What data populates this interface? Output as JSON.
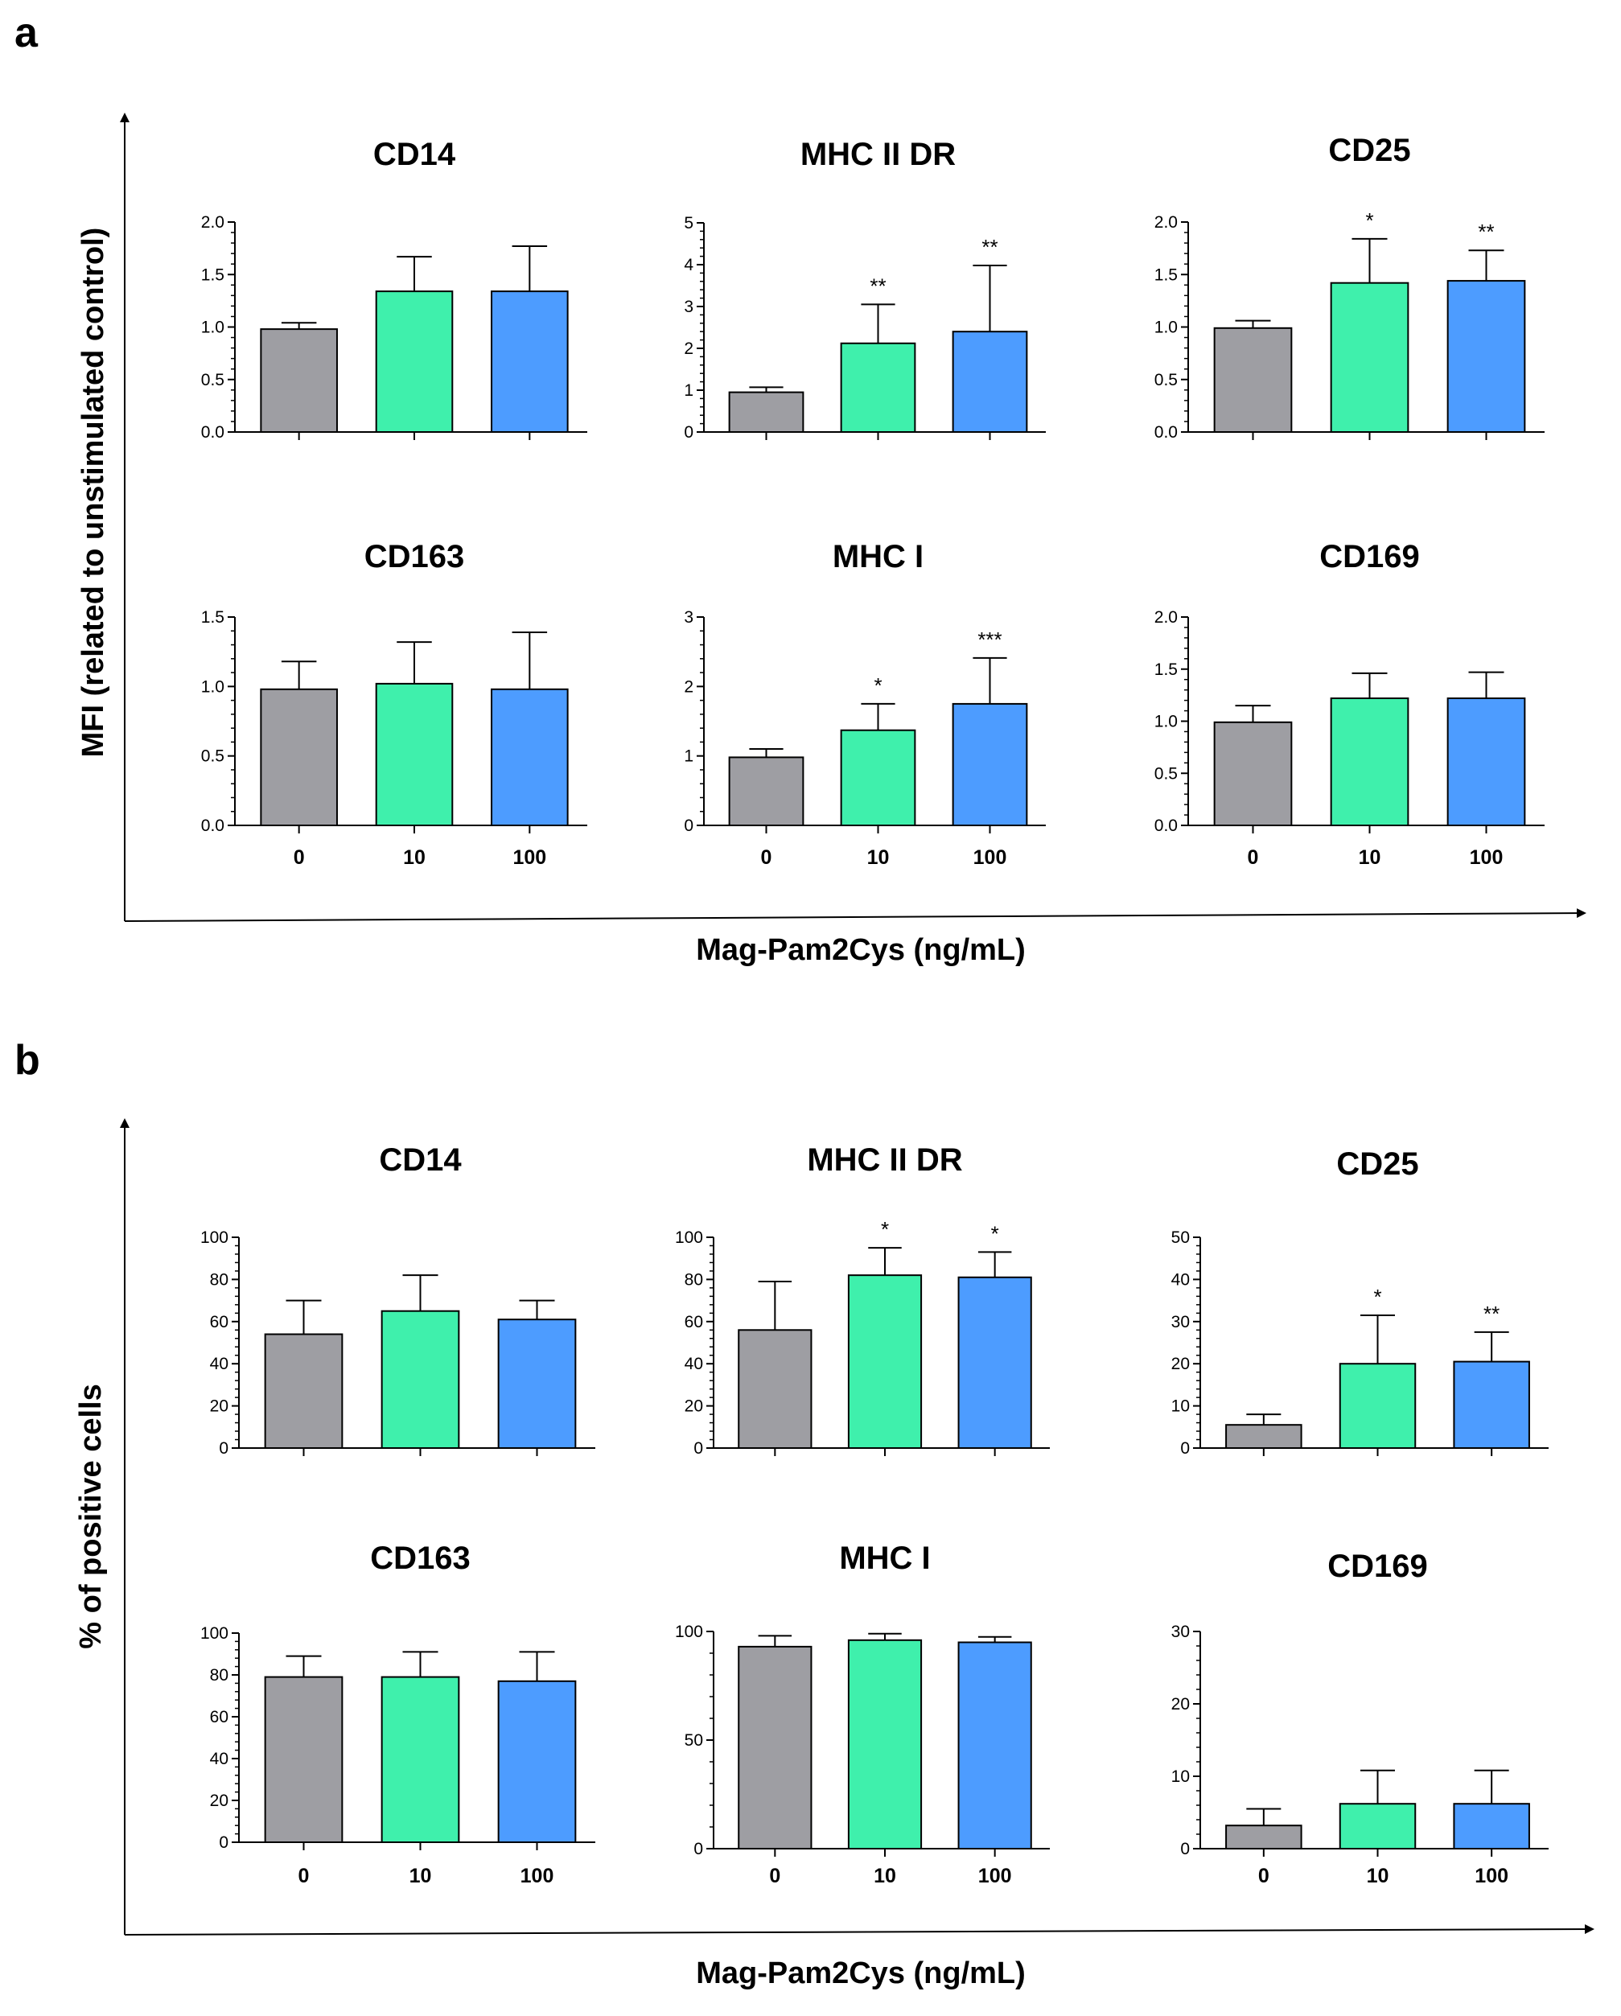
{
  "figure": {
    "panel_a_letter": "a",
    "panel_b_letter": "b",
    "panel_a_ylabel": "MFI (related to unstimulated control)",
    "panel_b_ylabel": "% of positive cells",
    "xlabel": "Mag-Pam2Cys (ng/mL)"
  },
  "colors": {
    "0": "#9e9ea3",
    "10": "#3ff0ac",
    "100": "#4d9cff",
    "axis": "#000000"
  },
  "chart_data": [
    {
      "panel": "a",
      "type": "bar",
      "title": "CD14",
      "categories": [
        "0",
        "10",
        "100"
      ],
      "values": [
        0.98,
        1.34,
        1.34
      ],
      "errors": [
        0.06,
        0.33,
        0.43
      ],
      "significance": [
        "",
        "",
        ""
      ],
      "ylim": [
        0,
        2.0
      ],
      "yticks": [
        "0.0",
        "0.5",
        "1.0",
        "1.5",
        "2.0"
      ],
      "show_categories": false
    },
    {
      "panel": "a",
      "type": "bar",
      "title": "MHC II DR",
      "categories": [
        "0",
        "10",
        "100"
      ],
      "values": [
        0.95,
        2.12,
        2.4
      ],
      "errors": [
        0.12,
        0.93,
        1.58
      ],
      "significance": [
        "",
        "**",
        "**"
      ],
      "ylim": [
        0,
        5
      ],
      "yticks": [
        "0",
        "1",
        "2",
        "3",
        "4",
        "5"
      ],
      "show_categories": false
    },
    {
      "panel": "a",
      "type": "bar",
      "title": "CD25",
      "categories": [
        "0",
        "10",
        "100"
      ],
      "values": [
        0.99,
        1.42,
        1.44
      ],
      "errors": [
        0.07,
        0.42,
        0.29
      ],
      "significance": [
        "",
        "*",
        "**"
      ],
      "ylim": [
        0,
        2.0
      ],
      "yticks": [
        "0.0",
        "0.5",
        "1.0",
        "1.5",
        "2.0"
      ],
      "show_categories": false
    },
    {
      "panel": "a",
      "type": "bar",
      "title": "CD163",
      "categories": [
        "0",
        "10",
        "100"
      ],
      "values": [
        0.98,
        1.02,
        0.98
      ],
      "errors": [
        0.2,
        0.3,
        0.41
      ],
      "significance": [
        "",
        "",
        ""
      ],
      "ylim": [
        0,
        1.5
      ],
      "yticks": [
        "0.0",
        "0.5",
        "1.0",
        "1.5"
      ],
      "show_categories": true
    },
    {
      "panel": "a",
      "type": "bar",
      "title": "MHC I",
      "categories": [
        "0",
        "10",
        "100"
      ],
      "values": [
        0.98,
        1.37,
        1.75
      ],
      "errors": [
        0.12,
        0.38,
        0.66
      ],
      "significance": [
        "",
        "*",
        "***"
      ],
      "ylim": [
        0,
        3
      ],
      "yticks": [
        "0",
        "1",
        "2",
        "3"
      ],
      "show_categories": true
    },
    {
      "panel": "a",
      "type": "bar",
      "title": "CD169",
      "categories": [
        "0",
        "10",
        "100"
      ],
      "values": [
        0.99,
        1.22,
        1.22
      ],
      "errors": [
        0.16,
        0.24,
        0.25
      ],
      "significance": [
        "",
        "",
        ""
      ],
      "ylim": [
        0,
        2.0
      ],
      "yticks": [
        "0.0",
        "0.5",
        "1.0",
        "1.5",
        "2.0"
      ],
      "show_categories": true
    },
    {
      "panel": "b",
      "type": "bar",
      "title": "CD14",
      "categories": [
        "0",
        "10",
        "100"
      ],
      "values": [
        54,
        65,
        61
      ],
      "errors": [
        16,
        17,
        9
      ],
      "significance": [
        "",
        "",
        ""
      ],
      "ylim": [
        0,
        100
      ],
      "yticks": [
        "0",
        "20",
        "40",
        "60",
        "80",
        "100"
      ],
      "show_categories": false
    },
    {
      "panel": "b",
      "type": "bar",
      "title": "MHC II DR",
      "categories": [
        "0",
        "10",
        "100"
      ],
      "values": [
        56,
        82,
        81
      ],
      "errors": [
        23,
        13,
        12
      ],
      "significance": [
        "",
        "*",
        "*"
      ],
      "ylim": [
        0,
        100
      ],
      "yticks": [
        "0",
        "20",
        "40",
        "60",
        "80",
        "100"
      ],
      "show_categories": false
    },
    {
      "panel": "b",
      "type": "bar",
      "title": "CD25",
      "categories": [
        "0",
        "10",
        "100"
      ],
      "values": [
        5.5,
        20,
        20.5
      ],
      "errors": [
        2.5,
        11.5,
        7
      ],
      "significance": [
        "",
        "*",
        "**"
      ],
      "ylim": [
        0,
        50
      ],
      "yticks": [
        "0",
        "10",
        "20",
        "30",
        "40",
        "50"
      ],
      "show_categories": false
    },
    {
      "panel": "b",
      "type": "bar",
      "title": "CD163",
      "categories": [
        "0",
        "10",
        "100"
      ],
      "values": [
        79,
        79,
        77
      ],
      "errors": [
        10,
        12,
        14
      ],
      "significance": [
        "",
        "",
        ""
      ],
      "ylim": [
        0,
        100
      ],
      "yticks": [
        "0",
        "20",
        "40",
        "60",
        "80",
        "100"
      ],
      "show_categories": true
    },
    {
      "panel": "b",
      "type": "bar",
      "title": "MHC I",
      "categories": [
        "0",
        "10",
        "100"
      ],
      "values": [
        93,
        96,
        95
      ],
      "errors": [
        5,
        3,
        2.5
      ],
      "significance": [
        "",
        "",
        ""
      ],
      "ylim": [
        0,
        100
      ],
      "yticks": [
        "0",
        "50",
        "100"
      ],
      "show_categories": true
    },
    {
      "panel": "b",
      "type": "bar",
      "title": "CD169",
      "categories": [
        "0",
        "10",
        "100"
      ],
      "values": [
        3.2,
        6.2,
        6.2
      ],
      "errors": [
        2.3,
        4.6,
        4.6
      ],
      "significance": [
        "",
        "",
        ""
      ],
      "ylim": [
        0,
        30
      ],
      "yticks": [
        "0",
        "10",
        "20",
        "30"
      ],
      "show_categories": true
    }
  ]
}
